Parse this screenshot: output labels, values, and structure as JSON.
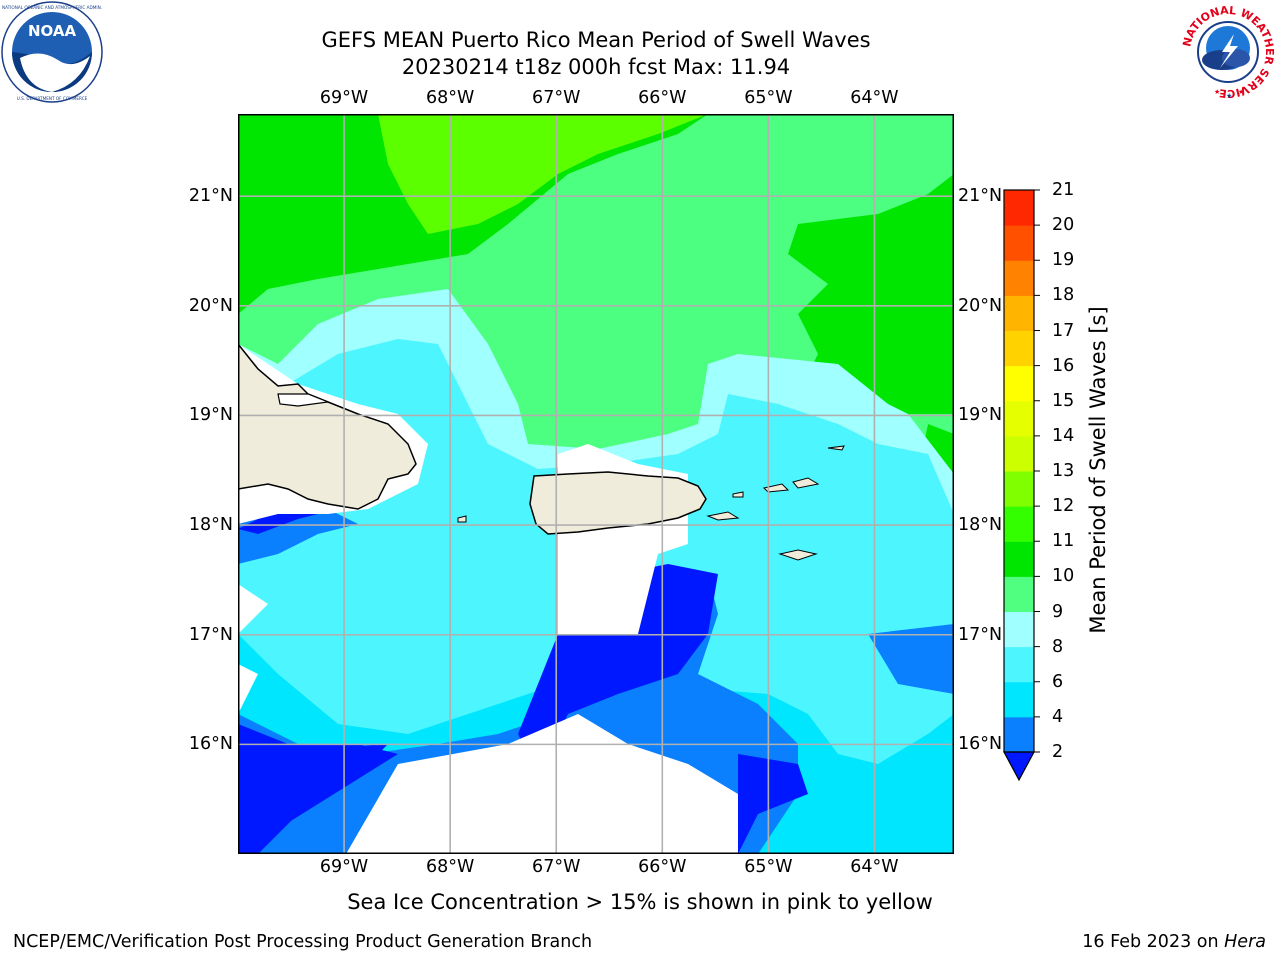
{
  "title": {
    "line1": "GEFS MEAN Puerto Rico Mean Period of Swell Waves",
    "line2": "20230214 t18z 000h fcst   Max: 11.94"
  },
  "logos": {
    "left": {
      "icon": "noaa-logo",
      "text": "NOAA",
      "ring_text": "NATIONAL OCEANIC AND ATMOSPHERIC ADMINISTRATION · U.S. DEPARTMENT OF COMMERCE"
    },
    "right": {
      "icon": "nws-logo",
      "ring_text": "NATIONAL WEATHER SERVICE"
    }
  },
  "axes": {
    "lon_labels": [
      "69°W",
      "68°W",
      "67°W",
      "66°W",
      "65°W",
      "64°W"
    ],
    "lat_labels": [
      "21°N",
      "20°N",
      "19°N",
      "18°N",
      "17°N",
      "16°N"
    ],
    "lon_values": [
      -69,
      -68,
      -67,
      -66,
      -65,
      -64
    ],
    "lat_values": [
      21,
      20,
      19,
      18,
      17,
      16
    ],
    "lon_range": [
      -70,
      -63.25
    ],
    "lat_range": [
      15,
      21.75
    ],
    "gridlines": true
  },
  "colorbar": {
    "label": "Mean Period of Swell Waves [s]",
    "ticks": [
      "2",
      "4",
      "6",
      "8",
      "9",
      "10",
      "11",
      "12",
      "13",
      "14",
      "15",
      "16",
      "17",
      "18",
      "19",
      "20",
      "21"
    ],
    "colors": [
      "#0018ff",
      "#0a80ff",
      "#00e6ff",
      "#4df5ff",
      "#a0ffff",
      "#50ff80",
      "#00e600",
      "#33ff00",
      "#80ff00",
      "#ccff00",
      "#e6ff00",
      "#ffff00",
      "#ffd200",
      "#ffb400",
      "#ff8200",
      "#ff5000",
      "#ff2800",
      "#ff0000"
    ],
    "extend": "min"
  },
  "chart_data": {
    "type": "heatmap",
    "variable": "Mean Period of Swell Waves",
    "unit": "s",
    "max": 11.94,
    "levels": [
      2,
      4,
      6,
      8,
      9,
      10,
      11,
      12,
      13,
      14,
      15,
      16,
      17,
      18,
      19,
      20,
      21
    ]
  },
  "land_color": "#efecdc",
  "note": "Sea Ice Concentration > 15% is shown in pink to yellow",
  "footer": {
    "left": "NCEP/EMC/Verification Post Processing Product Generation Branch",
    "date": "16 Feb 2023 on ",
    "host": "Hera"
  }
}
